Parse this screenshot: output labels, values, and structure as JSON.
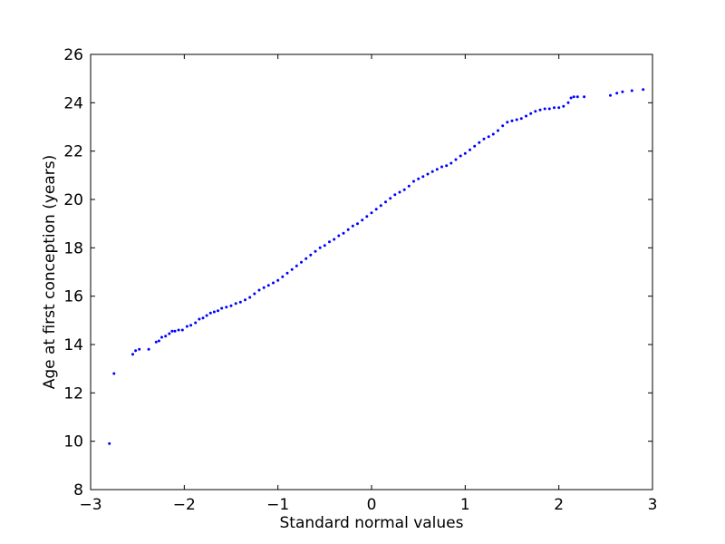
{
  "chart_data": {
    "type": "scatter",
    "title": "",
    "xlabel": "Standard normal values",
    "ylabel": "Age at first conception (years)",
    "xlim": [
      -3,
      3
    ],
    "ylim": [
      8,
      26
    ],
    "xticks": [
      -3,
      -2,
      -1,
      0,
      1,
      2,
      3
    ],
    "xtick_labels": [
      "−3",
      "−2",
      "−1",
      "0",
      "1",
      "2",
      "3"
    ],
    "yticks": [
      8,
      10,
      12,
      14,
      16,
      18,
      20,
      22,
      24,
      26
    ],
    "ytick_labels": [
      "8",
      "10",
      "12",
      "14",
      "16",
      "18",
      "20",
      "22",
      "24",
      "26"
    ],
    "grid": false,
    "marker_color": "#0000ff",
    "series": [
      {
        "x": [
          -2.8,
          -2.75,
          -2.55,
          -2.52,
          -2.48,
          -2.38,
          -2.3,
          -2.27,
          -2.24,
          -2.2,
          -2.16,
          -2.13,
          -2.1,
          -2.06,
          -2.02,
          -1.97,
          -1.93,
          -1.88,
          -1.84,
          -1.8,
          -1.76,
          -1.72,
          -1.68,
          -1.64,
          -1.6,
          -1.55,
          -1.5,
          -1.45,
          -1.4,
          -1.35,
          -1.3,
          -1.25,
          -1.2,
          -1.15,
          -1.1,
          -1.05,
          -1.0,
          -0.95,
          -0.9,
          -0.85,
          -0.8,
          -0.75,
          -0.7,
          -0.65,
          -0.6,
          -0.55,
          -0.5,
          -0.45,
          -0.4,
          -0.35,
          -0.3,
          -0.25,
          -0.2,
          -0.15,
          -0.1,
          -0.05,
          0.0,
          0.05,
          0.1,
          0.15,
          0.2,
          0.25,
          0.3,
          0.35,
          0.4,
          0.45,
          0.5,
          0.55,
          0.6,
          0.65,
          0.7,
          0.75,
          0.8,
          0.85,
          0.9,
          0.95,
          1.0,
          1.05,
          1.1,
          1.15,
          1.2,
          1.25,
          1.3,
          1.35,
          1.4,
          1.45,
          1.5,
          1.55,
          1.6,
          1.65,
          1.7,
          1.75,
          1.8,
          1.85,
          1.9,
          1.95,
          2.0,
          2.05,
          2.1,
          2.13,
          2.16,
          2.2,
          2.27,
          2.55,
          2.62,
          2.68,
          2.78,
          2.9
        ],
        "y": [
          9.9,
          12.8,
          13.6,
          13.75,
          13.8,
          13.8,
          14.1,
          14.15,
          14.3,
          14.35,
          14.45,
          14.55,
          14.55,
          14.6,
          14.6,
          14.75,
          14.8,
          14.9,
          15.05,
          15.1,
          15.2,
          15.3,
          15.35,
          15.4,
          15.5,
          15.55,
          15.6,
          15.7,
          15.75,
          15.85,
          15.95,
          16.1,
          16.25,
          16.35,
          16.45,
          16.55,
          16.65,
          16.8,
          16.95,
          17.1,
          17.25,
          17.4,
          17.55,
          17.7,
          17.85,
          18.0,
          18.1,
          18.25,
          18.35,
          18.5,
          18.6,
          18.75,
          18.9,
          19.0,
          19.15,
          19.3,
          19.45,
          19.6,
          19.75,
          19.9,
          20.05,
          20.2,
          20.3,
          20.4,
          20.55,
          20.75,
          20.85,
          20.95,
          21.05,
          21.15,
          21.25,
          21.35,
          21.4,
          21.5,
          21.65,
          21.8,
          21.9,
          22.05,
          22.2,
          22.35,
          22.5,
          22.6,
          22.7,
          22.85,
          23.05,
          23.2,
          23.25,
          23.3,
          23.35,
          23.45,
          23.55,
          23.65,
          23.7,
          23.75,
          23.75,
          23.8,
          23.8,
          23.85,
          24.0,
          24.2,
          24.25,
          24.25,
          24.25,
          24.3,
          24.4,
          24.45,
          24.5,
          24.55
        ]
      }
    ]
  }
}
